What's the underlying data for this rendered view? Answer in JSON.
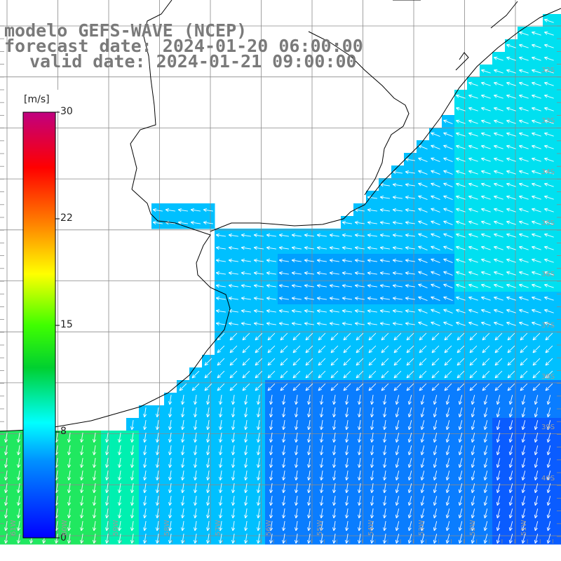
{
  "title": {
    "line1": "modelo GEFS-WAVE (NCEP)",
    "line2": "forecast date: 2024-01-20 06:00:00",
    "line3": "valid date: 2024-01-21 09:00:00"
  },
  "colorbar": {
    "unit": "[m/s]",
    "ticks": [
      "30",
      "22",
      "15",
      "8",
      "0"
    ],
    "colors": [
      "#0000ff",
      "#00d0ff",
      "#00ffff",
      "#00d000",
      "#00ff00",
      "#ffff00",
      "#ff8000",
      "#ff0000",
      "#c00080"
    ]
  },
  "latitude_labels": [
    "32S",
    "33S",
    "34S",
    "35S",
    "36S",
    "37S",
    "38S",
    "39S",
    "40S"
  ],
  "longitude_labels": [
    "61W",
    "60W",
    "59W",
    "58W",
    "57W",
    "56W",
    "55W",
    "54W",
    "53W",
    "52W",
    "51W"
  ],
  "field": {
    "variable": "wind speed and direction",
    "unit": "m/s",
    "ocean_color_dominant": "#00b0ff",
    "land_color": "#ffffff"
  }
}
